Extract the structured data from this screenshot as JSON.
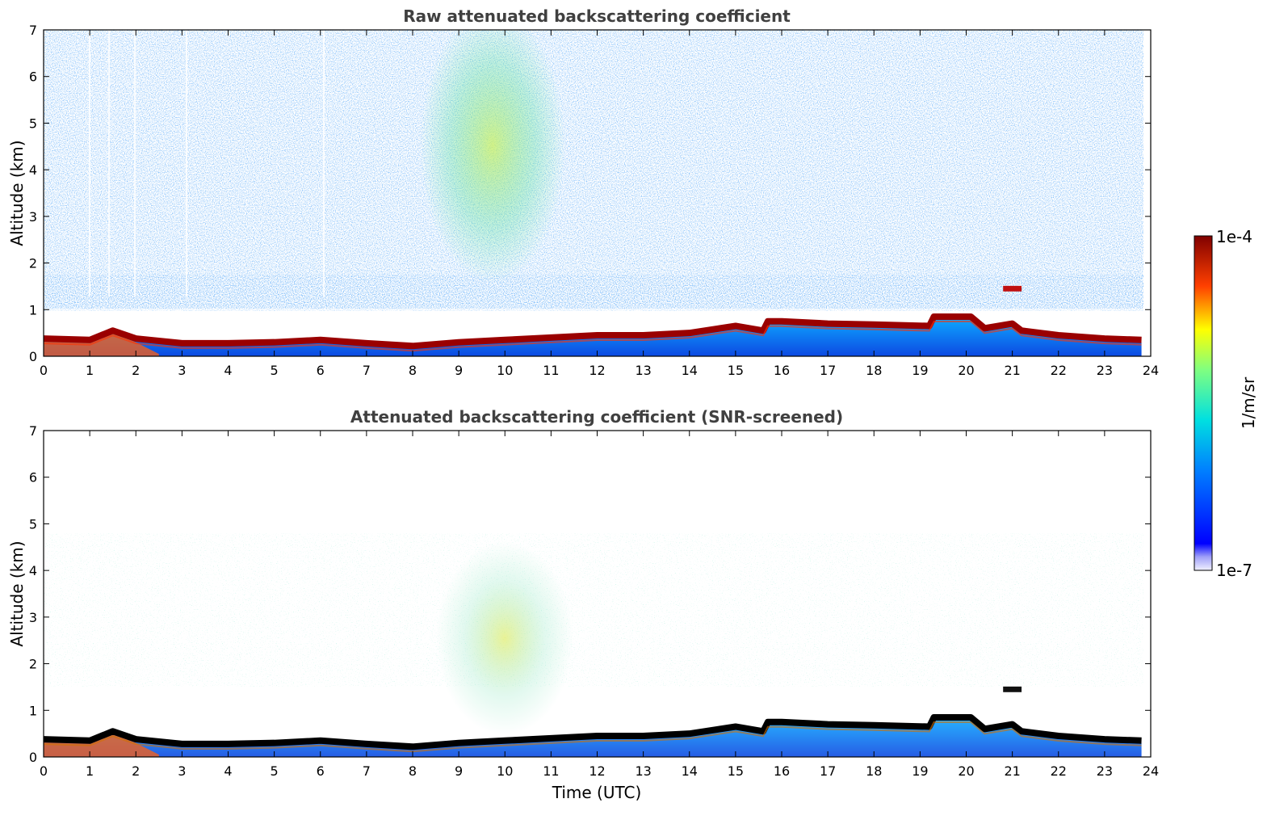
{
  "chart_data": [
    {
      "type": "heatmap",
      "title": "Raw attenuated backscattering coefficient",
      "xlabel": "",
      "ylabel": "Altitude (km)",
      "xlim": [
        0,
        24
      ],
      "ylim": [
        0,
        7
      ],
      "x_ticks": [
        "0",
        "1",
        "2",
        "3",
        "4",
        "5",
        "6",
        "7",
        "8",
        "9",
        "10",
        "11",
        "12",
        "13",
        "14",
        "15",
        "16",
        "17",
        "18",
        "19",
        "20",
        "21",
        "22",
        "23",
        "24"
      ],
      "y_ticks": [
        "0",
        "1",
        "2",
        "3",
        "4",
        "5",
        "6",
        "7"
      ],
      "features": {
        "boundary_layer_top_km": [
          [
            0,
            0.38
          ],
          [
            1,
            0.35
          ],
          [
            1.5,
            0.55
          ],
          [
            2,
            0.38
          ],
          [
            3,
            0.28
          ],
          [
            4,
            0.28
          ],
          [
            5,
            0.3
          ],
          [
            6,
            0.35
          ],
          [
            7,
            0.28
          ],
          [
            8,
            0.22
          ],
          [
            9,
            0.3
          ],
          [
            10,
            0.35
          ],
          [
            11,
            0.4
          ],
          [
            12,
            0.45
          ],
          [
            13,
            0.45
          ],
          [
            14,
            0.5
          ],
          [
            15,
            0.65
          ],
          [
            15.6,
            0.55
          ],
          [
            15.7,
            0.75
          ],
          [
            16,
            0.75
          ],
          [
            17,
            0.7
          ],
          [
            18,
            0.68
          ],
          [
            19.2,
            0.65
          ],
          [
            19.3,
            0.85
          ],
          [
            20.1,
            0.85
          ],
          [
            20.4,
            0.6
          ],
          [
            21,
            0.7
          ],
          [
            21.2,
            0.55
          ],
          [
            22,
            0.45
          ],
          [
            23,
            0.38
          ],
          [
            23.8,
            0.35
          ]
        ],
        "aerosol_plume_x_km": [
          8.8,
          11.2
        ],
        "elevated_layer": {
          "x": [
            20.8,
            21.2
          ],
          "y_km": 1.45
        }
      }
    },
    {
      "type": "heatmap",
      "title": "Attenuated backscattering coefficient (SNR-screened)",
      "xlabel": "Time (UTC)",
      "ylabel": "Altitude (km)",
      "xlim": [
        0,
        24
      ],
      "ylim": [
        0,
        7
      ],
      "x_ticks": [
        "0",
        "1",
        "2",
        "3",
        "4",
        "5",
        "6",
        "7",
        "8",
        "9",
        "10",
        "11",
        "12",
        "13",
        "14",
        "15",
        "16",
        "17",
        "18",
        "19",
        "20",
        "21",
        "22",
        "23",
        "24"
      ],
      "y_ticks": [
        "0",
        "1",
        "2",
        "3",
        "4",
        "5",
        "6",
        "7"
      ]
    }
  ],
  "colorbar": {
    "label": "1/m/sr",
    "max_label": "1e-4",
    "min_label": "1e-7",
    "scale": "log",
    "range": [
      1e-07,
      0.0001
    ],
    "colormap": "jet"
  }
}
